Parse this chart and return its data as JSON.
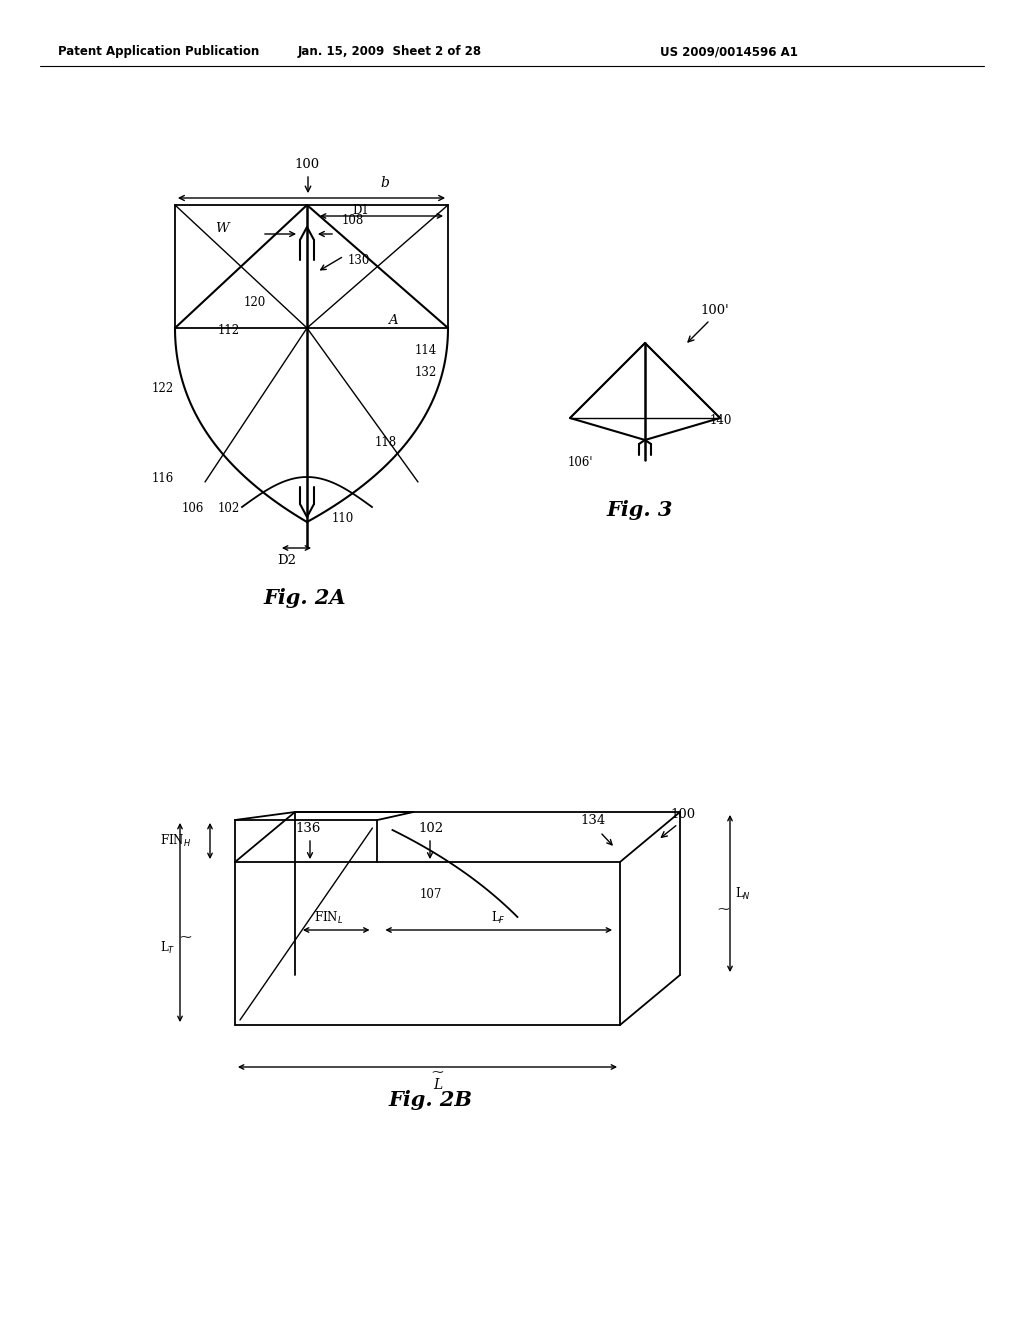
{
  "bg_color": "#ffffff",
  "text_color": "#000000",
  "line_color": "#000000",
  "header_left": "Patent Application Publication",
  "header_mid": "Jan. 15, 2009  Sheet 2 of 28",
  "header_right": "US 2009/0014596 A1",
  "fig2a_label": "Fig. 2A",
  "fig2b_label": "Fig. 2B",
  "fig3_label": "Fig. 3"
}
